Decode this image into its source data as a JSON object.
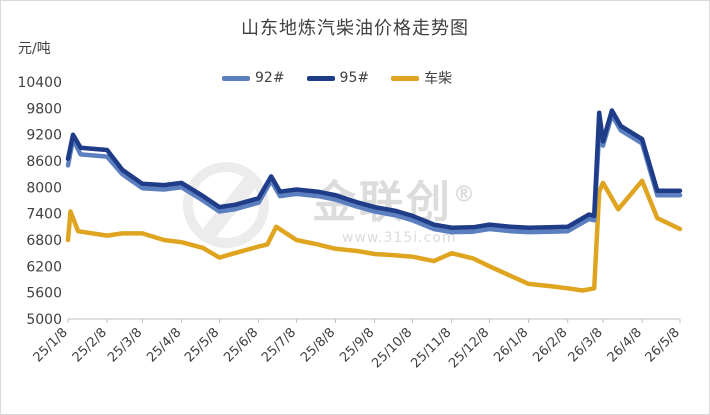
{
  "chart_data": {
    "type": "line",
    "title": "山东地炼汽柴油价格走势图",
    "ylabel": "元/吨",
    "xlabel": "",
    "ylim": [
      5000,
      10400
    ],
    "yticks": [
      5000,
      5600,
      6200,
      6800,
      7400,
      8000,
      8600,
      9200,
      9800,
      10400
    ],
    "xticks": [
      "25/1/8",
      "25/2/8",
      "25/3/8",
      "25/4/8",
      "25/5/8",
      "25/6/8",
      "25/7/8",
      "25/8/8",
      "25/9/8",
      "25/10/8",
      "25/11/8",
      "25/12/8",
      "26/1/8",
      "26/2/8",
      "26/3/8",
      "26/4/8",
      "26/5/8"
    ],
    "legend_position": "top",
    "grid": false,
    "series": [
      {
        "name": "92#",
        "color": "#5b7fbf",
        "x": [
          "25/1/8",
          "25/1/12",
          "25/1/18",
          "25/2/8",
          "25/2/20",
          "25/3/8",
          "25/3/25",
          "25/4/8",
          "25/4/25",
          "25/5/8",
          "25/5/20",
          "25/6/8",
          "25/6/18",
          "25/6/25",
          "25/7/8",
          "25/7/25",
          "25/8/8",
          "25/8/25",
          "25/9/8",
          "25/9/25",
          "25/10/8",
          "25/10/25",
          "25/11/8",
          "25/11/25",
          "25/12/8",
          "25/12/25",
          "26/1/8",
          "26/1/25",
          "26/2/8",
          "26/2/25",
          "26/3/1",
          "26/3/5",
          "26/3/8",
          "26/3/15",
          "26/3/22",
          "26/4/8",
          "26/4/20",
          "26/5/8"
        ],
        "values": [
          8500,
          9100,
          8750,
          8700,
          8300,
          7980,
          7950,
          8000,
          7700,
          7450,
          7500,
          7650,
          8150,
          7800,
          7850,
          7800,
          7720,
          7560,
          7450,
          7360,
          7250,
          7050,
          6980,
          6990,
          7050,
          7000,
          6980,
          6990,
          7000,
          7280,
          7250,
          9250,
          8950,
          9650,
          9300,
          9000,
          7820,
          7820
        ]
      },
      {
        "name": "95#",
        "color": "#1f3c88",
        "x": [
          "25/1/8",
          "25/1/12",
          "25/1/18",
          "25/2/8",
          "25/2/20",
          "25/3/8",
          "25/3/25",
          "25/4/8",
          "25/4/25",
          "25/5/8",
          "25/5/20",
          "25/6/8",
          "25/6/18",
          "25/6/25",
          "25/7/8",
          "25/7/25",
          "25/8/8",
          "25/8/25",
          "25/9/8",
          "25/9/25",
          "25/10/8",
          "25/10/25",
          "25/11/8",
          "25/11/25",
          "25/12/8",
          "25/12/25",
          "26/1/8",
          "26/1/25",
          "26/2/8",
          "26/2/25",
          "26/3/1",
          "26/3/5",
          "26/3/8",
          "26/3/15",
          "26/3/22",
          "26/4/8",
          "26/4/20",
          "26/5/8"
        ],
        "values": [
          8650,
          9200,
          8900,
          8850,
          8400,
          8080,
          8050,
          8100,
          7800,
          7550,
          7600,
          7750,
          8250,
          7900,
          7950,
          7900,
          7820,
          7660,
          7550,
          7460,
          7350,
          7150,
          7080,
          7090,
          7150,
          7100,
          7080,
          7090,
          7100,
          7380,
          7350,
          9700,
          9050,
          9750,
          9400,
          9100,
          7920,
          7920
        ]
      },
      {
        "name": "车柴",
        "color": "#e0a520",
        "x": [
          "25/1/8",
          "25/1/10",
          "25/1/16",
          "25/2/8",
          "25/2/20",
          "25/3/8",
          "25/3/25",
          "25/4/8",
          "25/4/25",
          "25/5/8",
          "25/5/20",
          "25/6/8",
          "25/6/15",
          "25/6/22",
          "25/7/8",
          "25/7/25",
          "25/8/8",
          "25/8/25",
          "25/9/8",
          "25/9/25",
          "25/10/8",
          "25/10/25",
          "25/11/8",
          "25/11/25",
          "25/12/8",
          "25/12/25",
          "26/1/8",
          "26/1/25",
          "26/2/8",
          "26/2/20",
          "26/3/1",
          "26/3/5",
          "26/3/8",
          "26/3/20",
          "26/4/8",
          "26/4/20",
          "26/5/8"
        ],
        "values": [
          6800,
          7450,
          7000,
          6900,
          6950,
          6950,
          6800,
          6750,
          6620,
          6400,
          6500,
          6650,
          6700,
          7100,
          6800,
          6700,
          6600,
          6550,
          6480,
          6450,
          6420,
          6320,
          6500,
          6380,
          6200,
          5980,
          5800,
          5750,
          5700,
          5650,
          5700,
          7900,
          8100,
          7500,
          8150,
          7300,
          7050
        ]
      }
    ]
  },
  "watermark": {
    "brand": "金联创",
    "url": "www.315i.com",
    "registered": "®"
  }
}
